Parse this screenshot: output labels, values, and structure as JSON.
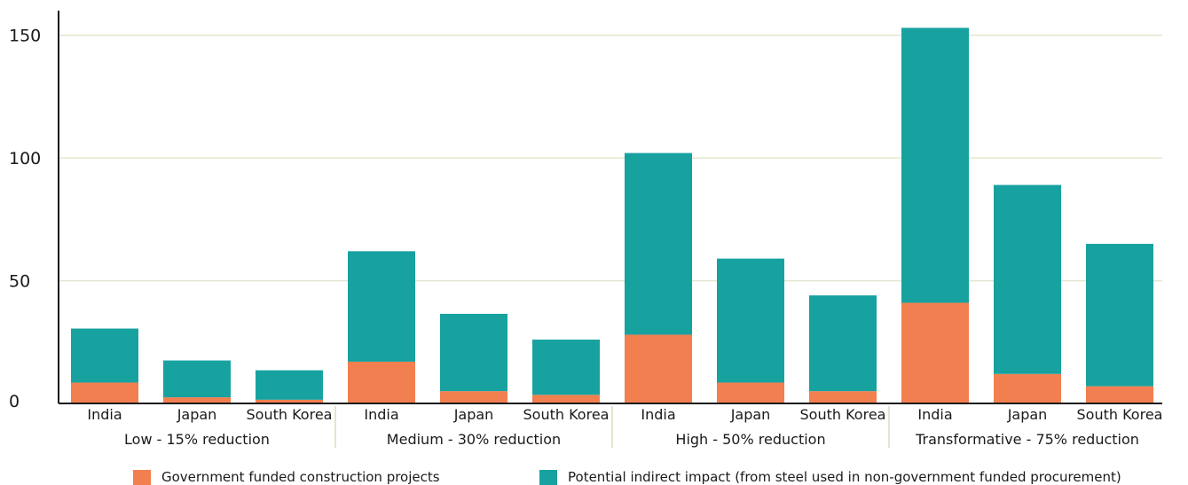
{
  "chart_data": {
    "type": "bar",
    "stacked": true,
    "groups": [
      {
        "label": "Low - 15% reduction",
        "categories": [
          "India",
          "Japan",
          "South Korea"
        ]
      },
      {
        "label": "Medium - 30% reduction",
        "categories": [
          "India",
          "Japan",
          "South Korea"
        ]
      },
      {
        "label": "High - 50% reduction",
        "categories": [
          "India",
          "Japan",
          "South Korea"
        ]
      },
      {
        "label": "Transformative - 75% reduction",
        "categories": [
          "India",
          "Japan",
          "South Korea"
        ]
      }
    ],
    "series": [
      {
        "name": "Government funded construction projects",
        "color": "#f27f4f",
        "values": [
          8.5,
          2.5,
          1.5,
          17,
          5,
          3.5,
          28,
          8.5,
          5,
          41,
          12,
          7
        ]
      },
      {
        "name": "Potential indirect impact (from steel used in non-government funded procurement)",
        "color": "#17a2a0",
        "values": [
          22,
          15,
          12,
          45,
          31.5,
          22.5,
          74,
          50.5,
          39,
          112,
          77,
          58
        ]
      }
    ],
    "yticks": [
      0,
      50,
      100,
      150
    ],
    "ylim": [
      0,
      160
    ],
    "grid": true,
    "legend_position": "bottom"
  }
}
